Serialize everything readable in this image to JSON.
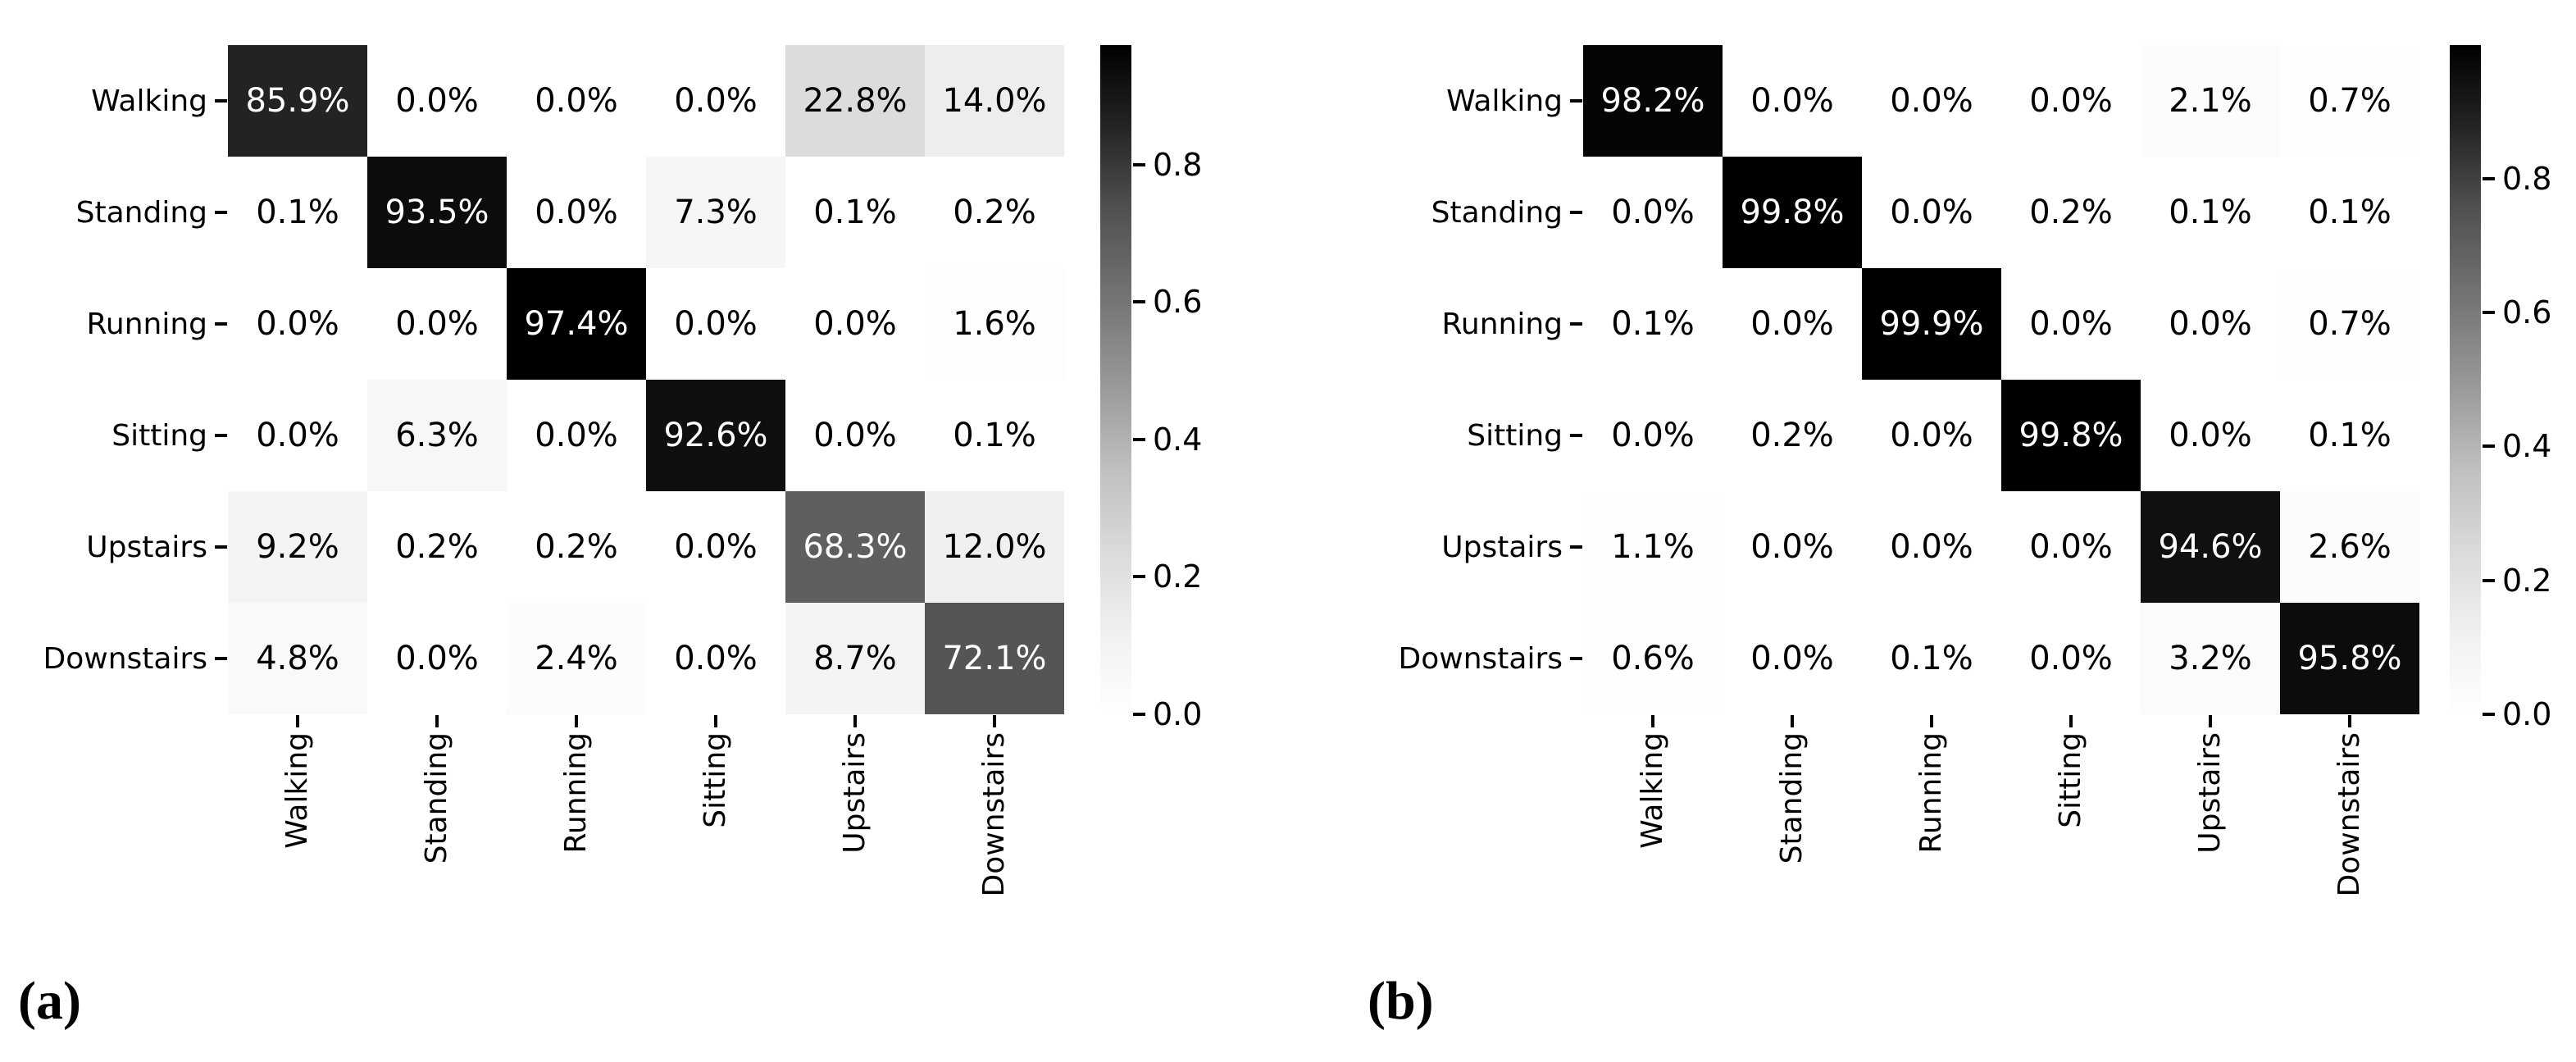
{
  "figure_type": "confusion-matrix heatmap pair",
  "background_color": "#ffffff",
  "activity_classes": [
    "Walking",
    "Standing",
    "Running",
    "Sitting",
    "Upstairs",
    "Downstairs"
  ],
  "chart_data": [
    {
      "type": "heatmap",
      "panel_label": "(a)",
      "x_axis_categories": [
        "Walking",
        "Standing",
        "Running",
        "Sitting",
        "Upstairs",
        "Downstairs"
      ],
      "y_axis_categories": [
        "Walking",
        "Standing",
        "Running",
        "Sitting",
        "Upstairs",
        "Downstairs"
      ],
      "values_percent": [
        [
          85.9,
          0.0,
          0.0,
          0.0,
          22.8,
          14.0
        ],
        [
          0.1,
          93.5,
          0.0,
          7.3,
          0.1,
          0.2
        ],
        [
          0.0,
          0.0,
          97.4,
          0.0,
          0.0,
          1.6
        ],
        [
          0.0,
          6.3,
          0.0,
          92.6,
          0.0,
          0.1
        ],
        [
          9.2,
          0.2,
          0.2,
          0.0,
          68.3,
          12.0
        ],
        [
          4.8,
          0.0,
          2.4,
          0.0,
          8.7,
          72.1
        ]
      ],
      "cell_label_suffix": "%",
      "colormap": "Greys",
      "vmin": 0.0,
      "vmax": 0.974,
      "colorbar_ticks": [
        0.0,
        0.2,
        0.4,
        0.6,
        0.8
      ],
      "colorbar_position": "right",
      "grid": false
    },
    {
      "type": "heatmap",
      "panel_label": "(b)",
      "x_axis_categories": [
        "Walking",
        "Standing",
        "Running",
        "Sitting",
        "Upstairs",
        "Downstairs"
      ],
      "y_axis_categories": [
        "Walking",
        "Standing",
        "Running",
        "Sitting",
        "Upstairs",
        "Downstairs"
      ],
      "values_percent": [
        [
          98.2,
          0.0,
          0.0,
          0.0,
          2.1,
          0.7
        ],
        [
          0.0,
          99.8,
          0.0,
          0.2,
          0.1,
          0.1
        ],
        [
          0.1,
          0.0,
          99.9,
          0.0,
          0.0,
          0.7
        ],
        [
          0.0,
          0.2,
          0.0,
          99.8,
          0.0,
          0.1
        ],
        [
          1.1,
          0.0,
          0.0,
          0.0,
          94.6,
          2.6
        ],
        [
          0.6,
          0.0,
          0.1,
          0.0,
          3.2,
          95.8
        ]
      ],
      "cell_label_suffix": "%",
      "colormap": "Greys",
      "vmin": 0.0,
      "vmax": 0.999,
      "colorbar_ticks": [
        0.0,
        0.2,
        0.4,
        0.6,
        0.8
      ],
      "colorbar_position": "right",
      "grid": false
    }
  ],
  "colors": {
    "colormap_stops": [
      "#ffffff",
      "#f0f0f0",
      "#d9d9d9",
      "#bdbdbd",
      "#969696",
      "#737373",
      "#525252",
      "#252525",
      "#000000"
    ],
    "cell_text_dark": "#000000",
    "cell_text_light": "#ffffff",
    "axis_text": "#000000"
  }
}
